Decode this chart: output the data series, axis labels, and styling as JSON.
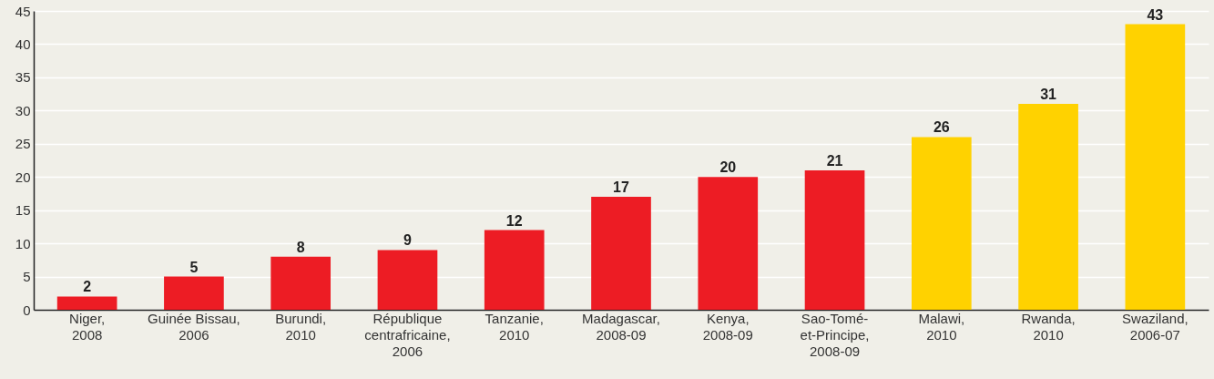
{
  "chart_data": {
    "type": "bar",
    "categories": [
      "Niger,\n2008",
      "Guinée Bissau,\n2006",
      "Burundi,\n2010",
      "République\ncentrafricaine,\n2006",
      "Tanzanie,\n2010",
      "Madagascar,\n2008-09",
      "Kenya,\n2008-09",
      "Sao-Tomé-\net-Principe,\n2008-09",
      "Malawi,\n2010",
      "Rwanda,\n2010",
      "Swaziland,\n2006-07"
    ],
    "values": [
      2,
      5,
      8,
      9,
      12,
      17,
      20,
      21,
      26,
      31,
      43
    ],
    "colors": [
      "#ed1c24",
      "#ed1c24",
      "#ed1c24",
      "#ed1c24",
      "#ed1c24",
      "#ed1c24",
      "#ed1c24",
      "#ed1c24",
      "#ffd200",
      "#ffd200",
      "#ffd200"
    ],
    "ylim": [
      0,
      45
    ],
    "yticks": [
      0,
      5,
      10,
      15,
      20,
      25,
      30,
      35,
      40,
      45
    ],
    "grid": "y",
    "data_labels": true
  }
}
